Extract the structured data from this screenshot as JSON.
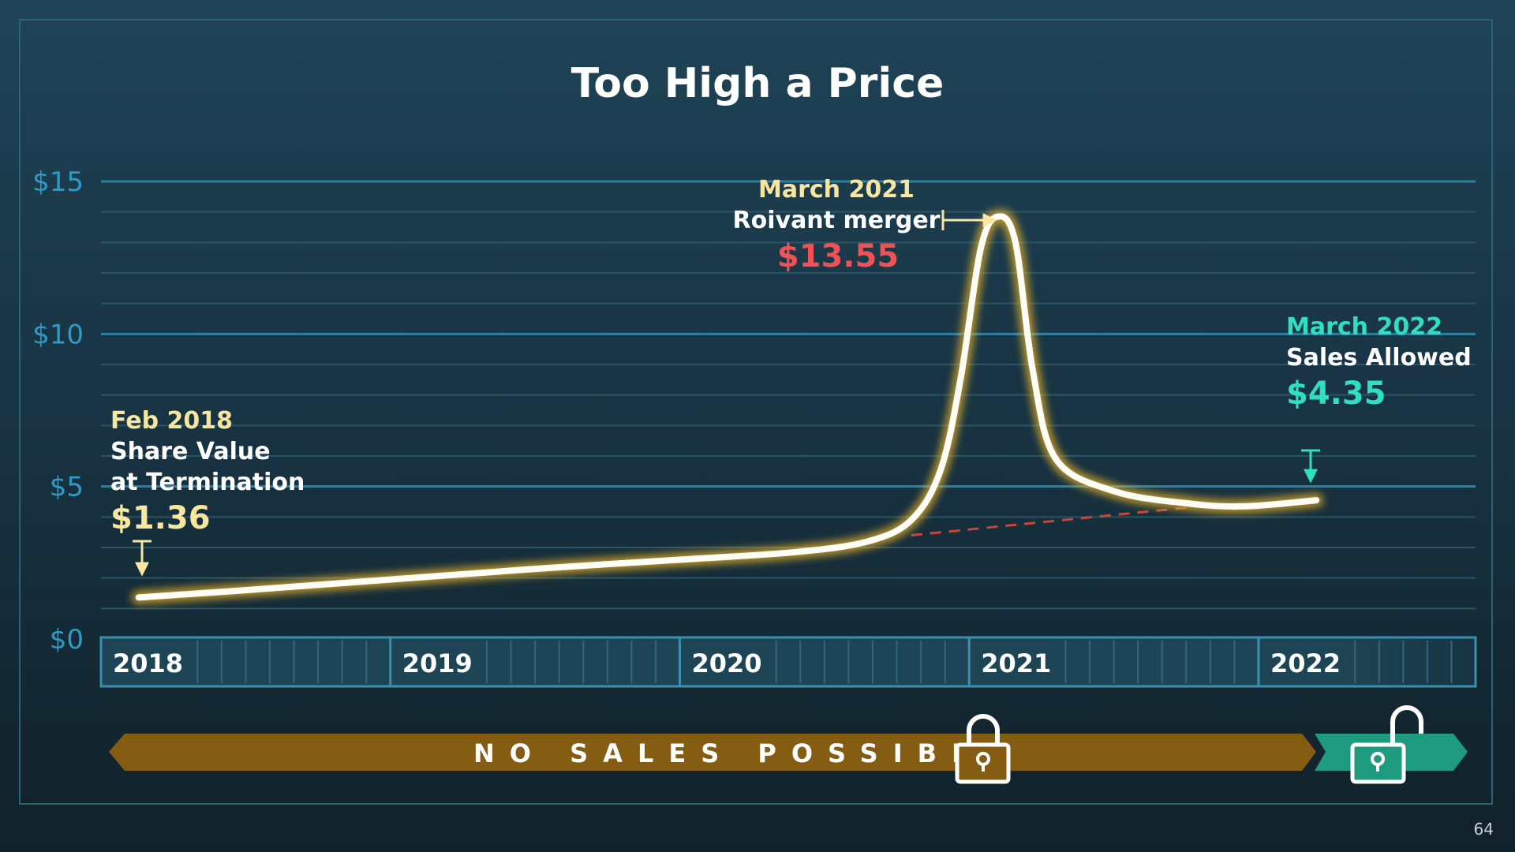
{
  "title": "Too High a Price",
  "page_number": "64",
  "colors": {
    "line": "#fffdf5",
    "glow": "#f2b928",
    "red": "#f05155",
    "cream": "#f7e6a0",
    "teal": "#2ee0bf",
    "banner": "#855d12",
    "banner_green": "#1e9a7e"
  },
  "chart_data": {
    "type": "line",
    "title": "Too High a Price",
    "xlabel": "",
    "ylabel": "",
    "y_ticks": [
      "$0",
      "$5",
      "$10",
      "$15"
    ],
    "y_tick_values": [
      0,
      5,
      10,
      15
    ],
    "ylim": [
      0,
      15
    ],
    "grid": true,
    "years": [
      "2018",
      "2019",
      "2020",
      "2021",
      "2022"
    ],
    "xlim": [
      2018,
      2022.75
    ],
    "series": [
      {
        "points": [
          [
            2018.13,
            1.36
          ],
          [
            2018.5,
            1.6
          ],
          [
            2019.0,
            1.95
          ],
          [
            2019.5,
            2.3
          ],
          [
            2020.0,
            2.6
          ],
          [
            2020.4,
            2.85
          ],
          [
            2020.65,
            3.2
          ],
          [
            2020.8,
            3.9
          ],
          [
            2020.9,
            5.5
          ],
          [
            2020.97,
            8.5
          ],
          [
            2021.04,
            12.8
          ],
          [
            2021.1,
            13.85
          ],
          [
            2021.16,
            13.0
          ],
          [
            2021.22,
            8.8
          ],
          [
            2021.3,
            5.9
          ],
          [
            2021.5,
            4.85
          ],
          [
            2021.75,
            4.45
          ],
          [
            2021.95,
            4.35
          ],
          [
            2022.2,
            4.55
          ]
        ]
      }
    ],
    "trend": {
      "from": [
        2020.8,
        3.4
      ],
      "to": [
        2021.85,
        4.4
      ]
    },
    "annotations": [
      {
        "date": "Feb 2018",
        "label_lines": [
          "Share Value",
          "at Termination"
        ],
        "value": "$1.36"
      },
      {
        "date": "March 2021",
        "label_lines": [
          "Roivant merger"
        ],
        "value": "$13.55"
      },
      {
        "date": "March 2022",
        "label_lines": [
          "Sales Allowed"
        ],
        "value": "$4.35"
      }
    ]
  },
  "banner": {
    "text": "NO SALES POSSIBLE",
    "locked_icon": "padlock-closed-icon",
    "unlocked_icon": "padlock-open-icon"
  }
}
